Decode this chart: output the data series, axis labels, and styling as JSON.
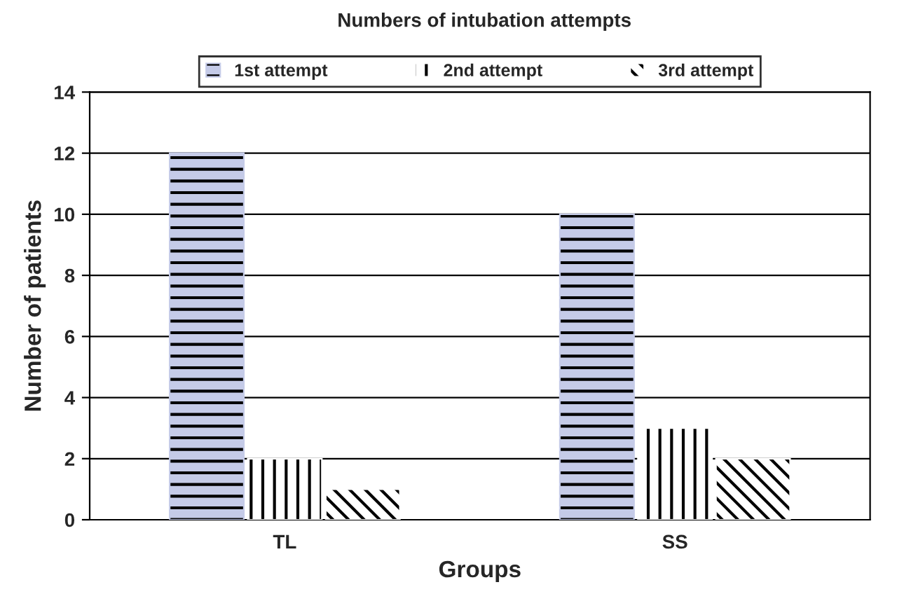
{
  "chart_data": {
    "type": "bar",
    "title": "Numbers of intubation attempts",
    "xlabel": "Groups",
    "ylabel": "Number of patients",
    "categories": [
      "TL",
      "SS"
    ],
    "series": [
      {
        "name": "1st attempt",
        "color": "#c5cbe8",
        "values": [
          12,
          10
        ]
      },
      {
        "name": "2nd attempt",
        "color": "#ffffff",
        "values": [
          2,
          3
        ]
      },
      {
        "name": "3rd attempt",
        "color": "#ffffff",
        "values": [
          1,
          2
        ]
      }
    ],
    "ylim": [
      0,
      14
    ],
    "yticks": [
      0,
      2,
      4,
      6,
      8,
      10,
      12,
      14
    ],
    "grid": "y",
    "legend": "top"
  }
}
